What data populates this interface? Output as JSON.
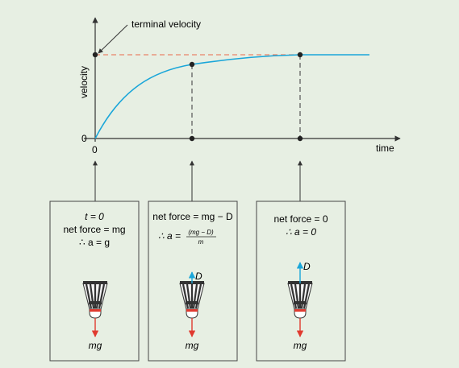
{
  "graph": {
    "annotation": "terminal velocity",
    "y_axis_label": "velocity",
    "x_axis_label": "time",
    "x_origin_label": "0",
    "y_origin_label": "0",
    "curve_color": "#1aa6d9",
    "terminal_line_color": "#e8846a",
    "axis_color": "#333333"
  },
  "panels": [
    {
      "lines": [
        {
          "text": "t = 0"
        },
        {
          "text": "net force = mg"
        },
        {
          "text": "∴ a = g"
        }
      ],
      "weight_label": "mg",
      "drag_label": ""
    },
    {
      "lines": [
        {
          "text": "net force = mg − D"
        },
        {
          "prefix": "∴ a =",
          "numerator": "(mg − D)",
          "denominator": "m"
        }
      ],
      "weight_label": "mg",
      "drag_label": "D"
    },
    {
      "lines": [
        {
          "text": "net force = 0"
        },
        {
          "text": "∴ a = 0"
        }
      ],
      "weight_label": "mg",
      "drag_label": "D"
    }
  ],
  "colors": {
    "weight_arrow": "#e03a2f",
    "drag_arrow": "#1aa6d9",
    "panel_border": "#444444",
    "background": "#e7efe3"
  }
}
